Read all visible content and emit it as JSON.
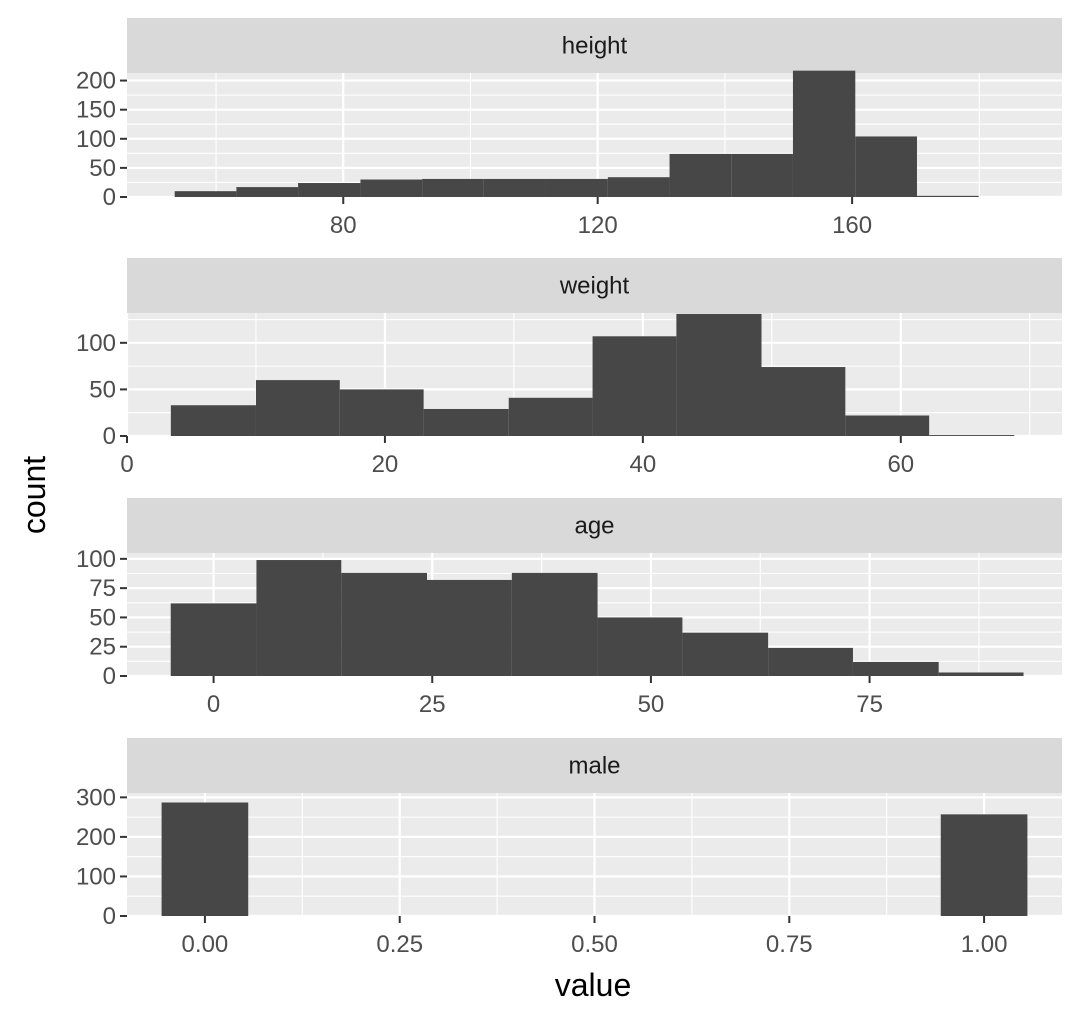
{
  "chart_data": {
    "type": "histogram-facets",
    "xlabel": "value",
    "ylabel": "count",
    "facet_scales": "free",
    "grid": true,
    "colors": {
      "bar": "#474747",
      "panel": "#ebebeb",
      "strip": "#d9d9d9",
      "grid": "#ffffff"
    },
    "panels": [
      {
        "title": "height",
        "xlim": [
          46,
          193
        ],
        "ylim": [
          0,
          213
        ],
        "xticks": [
          80,
          120,
          160
        ],
        "yticks": [
          0,
          50,
          100,
          150,
          200
        ],
        "bins": [
          {
            "x0": 53.5,
            "x1": 63.2,
            "count": 10
          },
          {
            "x0": 63.2,
            "x1": 72.9,
            "count": 17
          },
          {
            "x0": 72.9,
            "x1": 82.7,
            "count": 24
          },
          {
            "x0": 82.7,
            "x1": 92.4,
            "count": 30
          },
          {
            "x0": 92.4,
            "x1": 102.1,
            "count": 31
          },
          {
            "x0": 102.1,
            "x1": 111.8,
            "count": 31
          },
          {
            "x0": 111.8,
            "x1": 121.6,
            "count": 31
          },
          {
            "x0": 121.6,
            "x1": 131.3,
            "count": 34
          },
          {
            "x0": 131.3,
            "x1": 141.0,
            "count": 74
          },
          {
            "x0": 141.0,
            "x1": 150.7,
            "count": 74
          },
          {
            "x0": 150.7,
            "x1": 160.5,
            "count": 217
          },
          {
            "x0": 160.5,
            "x1": 170.2,
            "count": 104
          },
          {
            "x0": 170.2,
            "x1": 179.9,
            "count": 2
          }
        ]
      },
      {
        "title": "weight",
        "xlim": [
          0,
          72.5
        ],
        "ylim": [
          0,
          132
        ],
        "xticks": [
          0,
          20,
          40,
          60
        ],
        "yticks": [
          0,
          50,
          100
        ],
        "bins": [
          {
            "x0": 3.4,
            "x1": 10.0,
            "count": 33
          },
          {
            "x0": 10.0,
            "x1": 16.5,
            "count": 60
          },
          {
            "x0": 16.5,
            "x1": 23.0,
            "count": 50
          },
          {
            "x0": 23.0,
            "x1": 29.6,
            "count": 29
          },
          {
            "x0": 29.6,
            "x1": 36.1,
            "count": 41
          },
          {
            "x0": 36.1,
            "x1": 42.6,
            "count": 107
          },
          {
            "x0": 42.6,
            "x1": 49.2,
            "count": 131
          },
          {
            "x0": 49.2,
            "x1": 55.7,
            "count": 74
          },
          {
            "x0": 55.7,
            "x1": 62.2,
            "count": 22
          },
          {
            "x0": 62.2,
            "x1": 68.8,
            "count": 1
          }
        ]
      },
      {
        "title": "age",
        "xlim": [
          -9.9,
          97
        ],
        "ylim": [
          0,
          105
        ],
        "xticks": [
          0,
          25,
          50,
          75
        ],
        "yticks": [
          0,
          25,
          50,
          75,
          100
        ],
        "bins": [
          {
            "x0": -4.9,
            "x1": 4.9,
            "count": 62
          },
          {
            "x0": 4.9,
            "x1": 14.6,
            "count": 99
          },
          {
            "x0": 14.6,
            "x1": 24.4,
            "count": 88
          },
          {
            "x0": 24.4,
            "x1": 34.1,
            "count": 82
          },
          {
            "x0": 34.1,
            "x1": 43.9,
            "count": 88
          },
          {
            "x0": 43.9,
            "x1": 53.6,
            "count": 50
          },
          {
            "x0": 53.6,
            "x1": 63.4,
            "count": 37
          },
          {
            "x0": 63.4,
            "x1": 73.1,
            "count": 24
          },
          {
            "x0": 73.1,
            "x1": 82.9,
            "count": 12
          },
          {
            "x0": 82.9,
            "x1": 92.6,
            "count": 3
          }
        ]
      },
      {
        "title": "male",
        "xlim": [
          -0.1,
          1.1
        ],
        "ylim": [
          0,
          311
        ],
        "xticks": [
          0.0,
          0.25,
          0.5,
          0.75,
          1.0
        ],
        "xtick_labels": [
          "0.00",
          "0.25",
          "0.50",
          "0.75",
          "1.00"
        ],
        "yticks": [
          0,
          100,
          200,
          300
        ],
        "bins": [
          {
            "x0": -0.0556,
            "x1": 0.0556,
            "count": 287
          },
          {
            "x0": 0.9444,
            "x1": 1.0556,
            "count": 257
          }
        ]
      }
    ]
  }
}
